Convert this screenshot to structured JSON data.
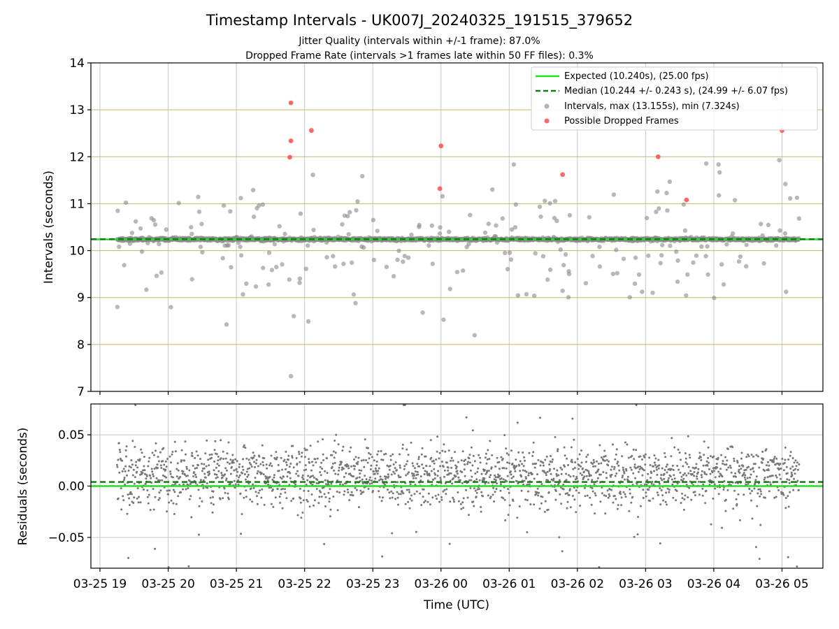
{
  "chart_data": [
    {
      "type": "scatter",
      "title": "Timestamp Intervals - UK007J_20240325_191515_379652",
      "subtitles": [
        "Jitter Quality (intervals within +/-1 frame): 87.0%",
        "Dropped Frame Rate (intervals >1 frames late within 50 FF files): 0.3%"
      ],
      "xlabel": "",
      "ylabel": "Intervals (seconds)",
      "ylim": [
        7,
        14
      ],
      "yticks": [
        7,
        8,
        9,
        10,
        11,
        12,
        13,
        14
      ],
      "grid": true,
      "legend_position": "top-right",
      "reference_lines": [
        {
          "name": "Expected (10.240s), (25.00 fps)",
          "y": 10.24,
          "style": "solid",
          "color": "#22dd22"
        },
        {
          "name": "Median (10.244 +/- 0.243 s), (24.99 +/- 6.07 fps)",
          "y": 10.244,
          "style": "dashed",
          "color": "#1a7a1a"
        }
      ],
      "series": [
        {
          "name": "Intervals, max (13.155s), min (7.324s)",
          "color": "#888888",
          "note": "~2200 points concentrated near 10.24 s with outliers between 7.3 s and 13.2 s"
        },
        {
          "name": "Possible Dropped Frames",
          "color": "#ff4d4d",
          "points": [
            {
              "x": "03-25 21:48",
              "y": 13.15
            },
            {
              "x": "03-25 21:48",
              "y": 12.34
            },
            {
              "x": "03-25 21:47",
              "y": 11.99
            },
            {
              "x": "03-25 22:06",
              "y": 12.56
            },
            {
              "x": "03-26 00:00",
              "y": 12.23
            },
            {
              "x": "03-25 23:59",
              "y": 11.32
            },
            {
              "x": "03-26 01:47",
              "y": 11.62
            },
            {
              "x": "03-26 03:11",
              "y": 12.0
            },
            {
              "x": "03-26 03:36",
              "y": 11.08
            },
            {
              "x": "03-26 05:00",
              "y": 12.56
            }
          ]
        }
      ]
    },
    {
      "type": "scatter",
      "xlabel": "Time (UTC)",
      "ylabel": "Residuals (seconds)",
      "ylim": [
        -0.08,
        0.08
      ],
      "yticks": [
        -0.05,
        0.0,
        0.05
      ],
      "ytick_labels": [
        "−0.05",
        "0.00",
        "0.05"
      ],
      "xlim": [
        "03-25 18:52",
        "03-26 05:36"
      ],
      "xtick_labels": [
        "03-25 19",
        "03-25 20",
        "03-25 21",
        "03-25 22",
        "03-25 23",
        "03-26 00",
        "03-26 01",
        "03-26 02",
        "03-26 03",
        "03-26 04",
        "03-26 05"
      ],
      "grid": true,
      "reference_lines": [
        {
          "y": 0.0,
          "style": "solid",
          "color": "#22dd22"
        },
        {
          "y": 0.004,
          "style": "dashed",
          "color": "#1a7a1a"
        }
      ],
      "series": [
        {
          "color": "#777777",
          "note": "~2200 residual points mostly between -0.035 and 0.045 s"
        }
      ]
    }
  ]
}
